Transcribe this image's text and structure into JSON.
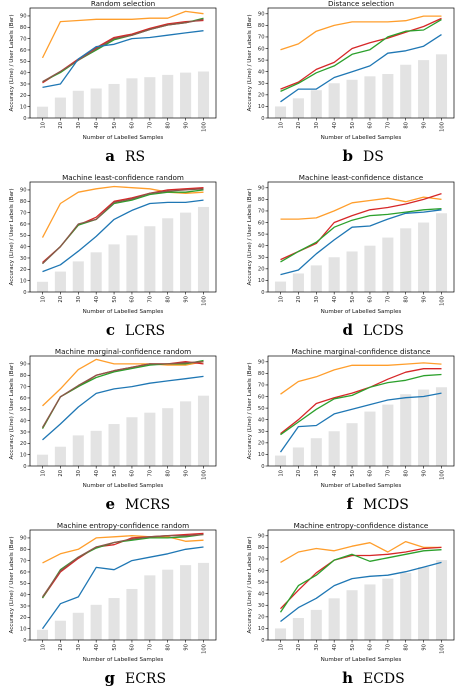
{
  "figure": {
    "x_ticks": [
      "10",
      "20",
      "30",
      "40",
      "50",
      "60",
      "70",
      "80",
      "90",
      "100"
    ],
    "y_ticks": [
      "0",
      "10",
      "20",
      "30",
      "40",
      "50",
      "60",
      "70",
      "80",
      "90"
    ],
    "colors": {
      "bar": "#e3e3e3",
      "orange": "#ff9e2c",
      "red": "#d62728",
      "green": "#2ca02c",
      "blue": "#1f77b4",
      "brown": "#8c564b"
    }
  },
  "chart_data": [
    {
      "type": "bar+line",
      "title": "Random selection",
      "xlabel": "Number of Labelled Samples",
      "ylabel": "Accuracy (Line)   /   User Labels (Bar)",
      "ylim": [
        0,
        97
      ],
      "caption_letter": "a",
      "caption_name": "RS",
      "categories": [
        10,
        20,
        30,
        40,
        50,
        60,
        70,
        80,
        90,
        100
      ],
      "bars": [
        10,
        18,
        24,
        26,
        30,
        35,
        36,
        38,
        40,
        41
      ],
      "lines": [
        {
          "color": "orange",
          "values": [
            53,
            85,
            86,
            87,
            87,
            87,
            88,
            88,
            94,
            92
          ]
        },
        {
          "color": "red",
          "values": [
            31,
            41,
            52,
            62,
            71,
            74,
            79,
            83,
            85,
            86
          ]
        },
        {
          "color": "green",
          "values": [
            32,
            40,
            51,
            60,
            69,
            73,
            78,
            82,
            84,
            88
          ]
        },
        {
          "color": "brown",
          "values": [
            32,
            41,
            51,
            61,
            70,
            73,
            78,
            82,
            84,
            87
          ]
        },
        {
          "color": "blue",
          "values": [
            27,
            30,
            52,
            63,
            65,
            70,
            71,
            73,
            75,
            77
          ]
        }
      ]
    },
    {
      "type": "bar+line",
      "title": "Distance selection",
      "xlabel": "Number of Labelled Samples",
      "ylabel": "Accuracy (Line)   /   User Labels (Bar)",
      "ylim": [
        0,
        95
      ],
      "caption_letter": "b",
      "caption_name": "DS",
      "categories": [
        10,
        20,
        30,
        40,
        50,
        60,
        70,
        80,
        90,
        100
      ],
      "bars": [
        10,
        17,
        24,
        30,
        33,
        36,
        38,
        46,
        50,
        55
      ],
      "lines": [
        {
          "color": "orange",
          "values": [
            59,
            64,
            75,
            80,
            83,
            83,
            83,
            84,
            88,
            88
          ]
        },
        {
          "color": "red",
          "values": [
            25,
            31,
            42,
            48,
            60,
            65,
            69,
            74,
            79,
            86
          ]
        },
        {
          "color": "green",
          "values": [
            23,
            30,
            39,
            45,
            55,
            59,
            70,
            75,
            76,
            85
          ]
        },
        {
          "color": "blue",
          "values": [
            14,
            25,
            25,
            35,
            40,
            45,
            56,
            58,
            62,
            72
          ]
        }
      ]
    },
    {
      "type": "bar+line",
      "title": "Machine least-confidence random",
      "xlabel": "Number of Labelled Samples",
      "ylabel": "Accuracy (Line)   /   User Labels (Bar)",
      "ylim": [
        0,
        97
      ],
      "caption_letter": "c",
      "caption_name": "LCRS",
      "categories": [
        10,
        20,
        30,
        40,
        50,
        60,
        70,
        80,
        90,
        100
      ],
      "bars": [
        9,
        18,
        27,
        35,
        42,
        50,
        58,
        65,
        70,
        75
      ],
      "lines": [
        {
          "color": "orange",
          "values": [
            48,
            78,
            88,
            91,
            93,
            92,
            91,
            88,
            87,
            88
          ]
        },
        {
          "color": "red",
          "values": [
            26,
            40,
            59,
            66,
            80,
            83,
            87,
            90,
            91,
            92
          ]
        },
        {
          "color": "green",
          "values": [
            25,
            40,
            59,
            64,
            78,
            81,
            86,
            88,
            88,
            90
          ]
        },
        {
          "color": "brown",
          "values": [
            25,
            40,
            60,
            64,
            79,
            82,
            87,
            89,
            90,
            91
          ]
        },
        {
          "color": "blue",
          "values": [
            18,
            24,
            36,
            49,
            64,
            72,
            78,
            79,
            79,
            81
          ]
        }
      ]
    },
    {
      "type": "bar+line",
      "title": "Machine least-confidence distance",
      "xlabel": "Number of Labelled Samples",
      "ylabel": "Accuracy (Line)   /   User Labels (Bar)",
      "ylim": [
        0,
        95
      ],
      "caption_letter": "d",
      "caption_name": "LCDS",
      "categories": [
        10,
        20,
        30,
        40,
        50,
        60,
        70,
        80,
        90,
        100
      ],
      "bars": [
        9,
        16,
        23,
        30,
        35,
        40,
        47,
        55,
        60,
        68
      ],
      "lines": [
        {
          "color": "orange",
          "values": [
            63,
            63,
            64,
            70,
            77,
            79,
            81,
            78,
            82,
            80
          ]
        },
        {
          "color": "red",
          "values": [
            28,
            35,
            42,
            60,
            66,
            71,
            73,
            76,
            80,
            85
          ]
        },
        {
          "color": "green",
          "values": [
            26,
            35,
            43,
            56,
            62,
            66,
            67,
            69,
            71,
            72
          ]
        },
        {
          "color": "blue",
          "values": [
            15,
            19,
            33,
            45,
            56,
            57,
            63,
            68,
            69,
            71
          ]
        }
      ]
    },
    {
      "type": "bar+line",
      "title": "Machine marginal-confidence random",
      "xlabel": "Number of Labelled Samples",
      "ylabel": "Accuracy (Line)   /   User Labels (Bar)",
      "ylim": [
        0,
        97
      ],
      "caption_letter": "e",
      "caption_name": "MCRS",
      "categories": [
        10,
        20,
        30,
        40,
        50,
        60,
        70,
        80,
        90,
        100
      ],
      "bars": [
        10,
        17,
        27,
        31,
        37,
        43,
        47,
        51,
        57,
        62
      ],
      "lines": [
        {
          "color": "orange",
          "values": [
            53,
            68,
            85,
            94,
            90,
            90,
            90,
            89,
            89,
            92
          ]
        },
        {
          "color": "red",
          "values": [
            33,
            61,
            70,
            80,
            84,
            87,
            90,
            90,
            92,
            90
          ]
        },
        {
          "color": "green",
          "values": [
            33,
            61,
            70,
            78,
            83,
            86,
            89,
            90,
            90,
            93
          ]
        },
        {
          "color": "brown",
          "values": [
            34,
            61,
            71,
            80,
            84,
            87,
            90,
            90,
            91,
            92
          ]
        },
        {
          "color": "blue",
          "values": [
            23,
            37,
            52,
            64,
            68,
            70,
            73,
            75,
            77,
            79
          ]
        }
      ]
    },
    {
      "type": "bar+line",
      "title": "Machine marginal-confidence distance",
      "xlabel": "Number of Labelled Samples",
      "ylabel": "Accuracy (Line)   /   User Labels (Bar)",
      "ylim": [
        0,
        95
      ],
      "caption_letter": "f",
      "caption_name": "MCDS",
      "categories": [
        10,
        20,
        30,
        40,
        50,
        60,
        70,
        80,
        90,
        100
      ],
      "bars": [
        9,
        16,
        24,
        30,
        37,
        47,
        53,
        62,
        66,
        68
      ],
      "lines": [
        {
          "color": "orange",
          "values": [
            62,
            73,
            77,
            83,
            87,
            87,
            87,
            88,
            89,
            88
          ]
        },
        {
          "color": "red",
          "values": [
            28,
            40,
            54,
            59,
            63,
            68,
            75,
            81,
            84,
            84
          ]
        },
        {
          "color": "green",
          "values": [
            27,
            38,
            49,
            58,
            61,
            68,
            72,
            74,
            78,
            79
          ]
        },
        {
          "color": "blue",
          "values": [
            12,
            34,
            35,
            45,
            49,
            53,
            57,
            59,
            60,
            63
          ]
        }
      ]
    },
    {
      "type": "bar+line",
      "title": "Machine entropy-confidence random",
      "xlabel": "Number of Labelled Samples",
      "ylabel": "Accuracy (Line)   /   User Labels (Bar)",
      "ylim": [
        0,
        97
      ],
      "caption_letter": "g",
      "caption_name": "ECRS",
      "categories": [
        10,
        20,
        30,
        40,
        50,
        60,
        70,
        80,
        90,
        100
      ],
      "bars": [
        9,
        17,
        24,
        31,
        37,
        45,
        57,
        62,
        66,
        68
      ],
      "lines": [
        {
          "color": "orange",
          "values": [
            68,
            76,
            80,
            90,
            91,
            92,
            91,
            91,
            87,
            88
          ]
        },
        {
          "color": "red",
          "values": [
            37,
            60,
            72,
            82,
            84,
            90,
            91,
            92,
            93,
            94
          ]
        },
        {
          "color": "green",
          "values": [
            37,
            62,
            73,
            81,
            86,
            88,
            90,
            90,
            91,
            93
          ]
        },
        {
          "color": "brown",
          "values": [
            38,
            61,
            73,
            82,
            86,
            89,
            91,
            92,
            92,
            93
          ]
        },
        {
          "color": "blue",
          "values": [
            10,
            32,
            38,
            64,
            62,
            70,
            73,
            76,
            80,
            82
          ]
        }
      ]
    },
    {
      "type": "bar+line",
      "title": "Machine entropy-confidence distance",
      "xlabel": "Number of Labelled Samples",
      "ylabel": "Accuracy (Line)   /   User Labels (Bar)",
      "ylim": [
        0,
        95
      ],
      "caption_letter": "h",
      "caption_name": "ECDS",
      "categories": [
        10,
        20,
        30,
        40,
        50,
        60,
        70,
        80,
        90,
        100
      ],
      "bars": [
        10,
        19,
        26,
        36,
        43,
        48,
        53,
        58,
        63,
        69
      ],
      "lines": [
        {
          "color": "orange",
          "values": [
            67,
            76,
            79,
            77,
            81,
            84,
            76,
            85,
            80,
            80
          ]
        },
        {
          "color": "red",
          "values": [
            27,
            43,
            58,
            69,
            73,
            73,
            74,
            76,
            79,
            80
          ]
        },
        {
          "color": "green",
          "values": [
            24,
            47,
            56,
            69,
            74,
            68,
            71,
            74,
            77,
            78
          ]
        },
        {
          "color": "blue",
          "values": [
            16,
            28,
            36,
            47,
            53,
            55,
            56,
            59,
            63,
            67
          ]
        }
      ]
    }
  ]
}
